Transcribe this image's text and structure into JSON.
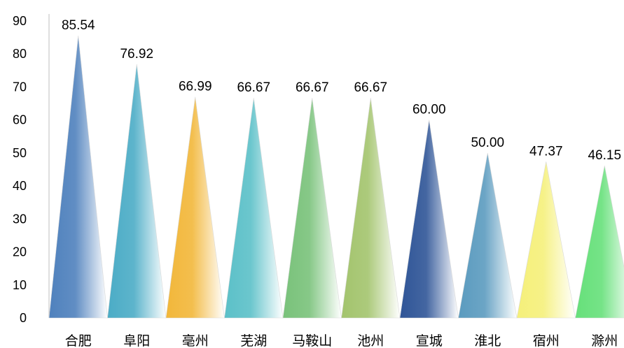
{
  "chart_data": {
    "type": "bar",
    "title": "",
    "xlabel": "",
    "ylabel": "",
    "categories": [
      "合肥",
      "阜阳",
      "亳州",
      "芜湖",
      "马鞍山",
      "池州",
      "宣城",
      "淮北",
      "宿州",
      "滁州"
    ],
    "values": [
      85.54,
      76.92,
      66.99,
      66.67,
      66.67,
      66.67,
      60.0,
      50.0,
      47.37,
      46.15
    ],
    "data_labels": [
      "85.54",
      "76.92",
      "66.99",
      "66.67",
      "66.67",
      "66.67",
      "60.00",
      "50.00",
      "47.37",
      "46.15"
    ],
    "ylim": [
      0,
      90
    ],
    "yticks": [
      "0",
      "10",
      "20",
      "30",
      "40",
      "50",
      "60",
      "70",
      "80",
      "90"
    ],
    "grid": false,
    "mark_shape": "triangle",
    "colors": [
      "#4f81bd",
      "#4bacc6",
      "#f2b73a",
      "#5bc0c8",
      "#79c27a",
      "#a3c46d",
      "#2f5597",
      "#5b9bbf",
      "#f5f07a",
      "#66e07a"
    ]
  }
}
